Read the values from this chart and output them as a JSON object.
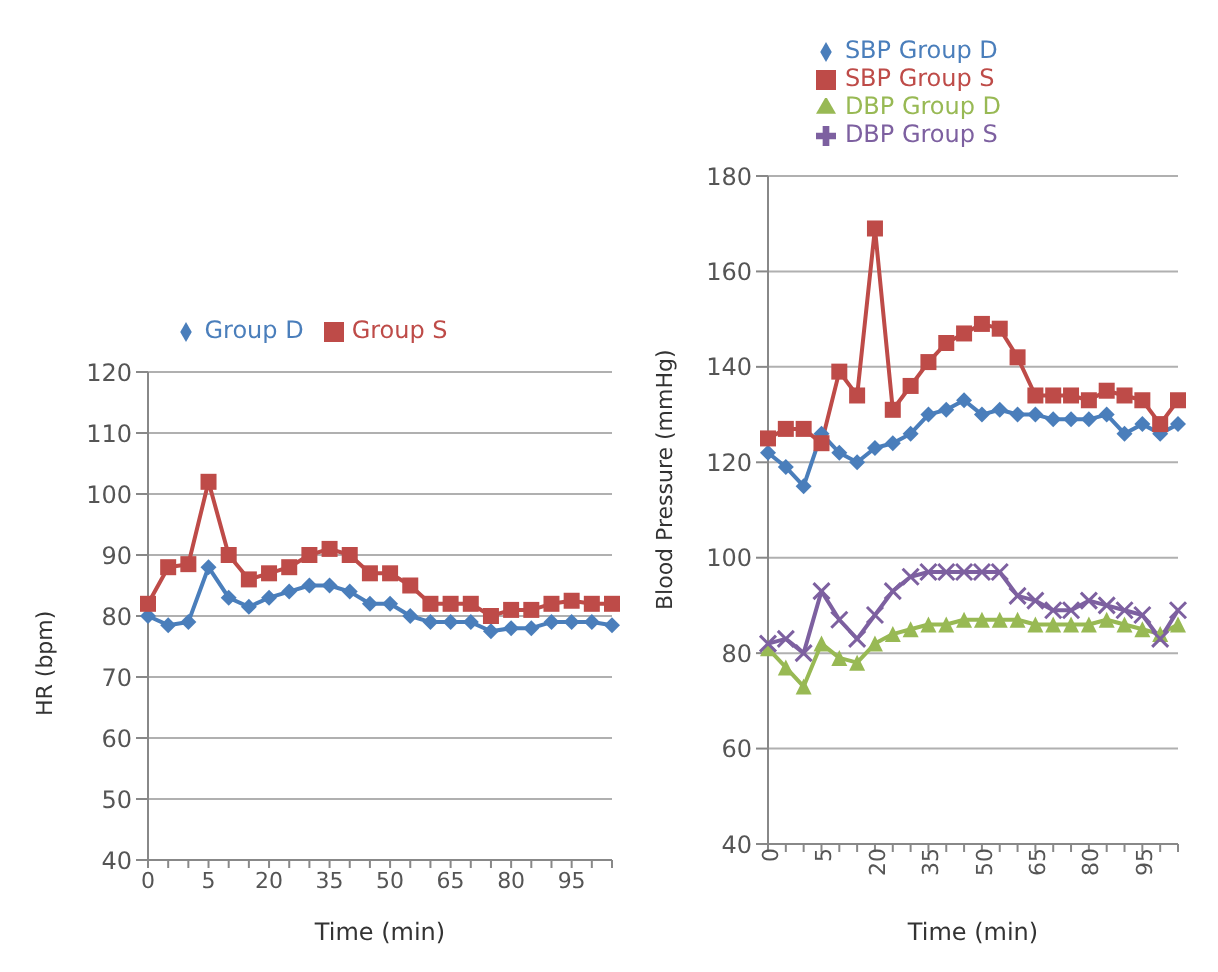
{
  "chart_data": [
    {
      "type": "line",
      "xlabel": "Time (min)",
      "ylabel": "HR (bpm)",
      "categories": [
        "0",
        null,
        null,
        "5",
        null,
        null,
        "20",
        null,
        null,
        "35",
        null,
        null,
        "50",
        null,
        null,
        "65",
        null,
        null,
        "80",
        null,
        null,
        "95",
        null,
        null
      ],
      "ylim": [
        40,
        120
      ],
      "yticks": [
        40,
        50,
        60,
        70,
        80,
        90,
        100,
        110,
        120
      ],
      "grid": "y",
      "legend": "top",
      "series": [
        {
          "name": "Group D",
          "color": "#4a7ebb",
          "marker": "diamond",
          "values": [
            80,
            78.5,
            79,
            88,
            83,
            81.5,
            83,
            84,
            85,
            85,
            84,
            82,
            82,
            80,
            79,
            79,
            79,
            77.5,
            78,
            78,
            79,
            79,
            79,
            78.5
          ]
        },
        {
          "name": "Group S",
          "color": "#be4b48",
          "marker": "square",
          "values": [
            82,
            88,
            88.5,
            102,
            90,
            86,
            87,
            88,
            90,
            91,
            90,
            87,
            87,
            85,
            82,
            82,
            82,
            80,
            81,
            81,
            82,
            82.5,
            82,
            82
          ]
        }
      ]
    },
    {
      "type": "line",
      "xlabel": "Time (min)",
      "ylabel": "Blood Pressure (mmHg)",
      "categories": [
        "0",
        null,
        null,
        "5",
        null,
        null,
        "20",
        null,
        null,
        "35",
        null,
        null,
        "50",
        null,
        null,
        "65",
        null,
        null,
        "80",
        null,
        null,
        "95",
        null,
        null
      ],
      "ylim": [
        40,
        180
      ],
      "yticks": [
        40,
        60,
        80,
        100,
        120,
        140,
        160,
        180
      ],
      "grid": "y",
      "legend": "top",
      "series": [
        {
          "name": "SBP Group D",
          "color": "#4a7ebb",
          "marker": "diamond",
          "values": [
            122,
            119,
            115,
            126,
            122,
            120,
            123,
            124,
            126,
            130,
            131,
            133,
            130,
            131,
            130,
            130,
            129,
            129,
            129,
            130,
            126,
            128,
            126,
            128
          ]
        },
        {
          "name": "SBP Group S",
          "color": "#be4b48",
          "marker": "square",
          "values": [
            125,
            127,
            127,
            124,
            139,
            134,
            169,
            131,
            136,
            141,
            145,
            147,
            149,
            148,
            142,
            134,
            134,
            134,
            133,
            135,
            134,
            133,
            128,
            133
          ]
        },
        {
          "name": "DBP Group D",
          "color": "#98b954",
          "marker": "triangle",
          "values": [
            81,
            77,
            73,
            82,
            79,
            78,
            82,
            84,
            85,
            86,
            86,
            87,
            87,
            87,
            87,
            86,
            86,
            86,
            86,
            87,
            86,
            85,
            84,
            86
          ]
        },
        {
          "name": "DBP Group S",
          "color": "#7d60a0",
          "marker": "cross",
          "values": [
            82,
            83,
            80,
            93,
            87,
            83,
            88,
            93,
            96,
            97,
            97,
            97,
            97,
            97,
            92,
            91,
            89,
            89,
            91,
            90,
            89,
            88,
            83,
            89
          ]
        }
      ]
    }
  ]
}
